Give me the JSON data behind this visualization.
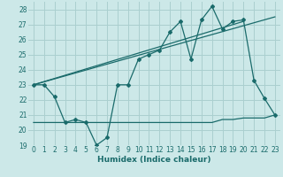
{
  "xlabel": "Humidex (Indice chaleur)",
  "background_color": "#cce8e8",
  "grid_color": "#aacfcf",
  "line_color": "#1a6b6b",
  "xlim": [
    -0.5,
    23.5
  ],
  "ylim": [
    19,
    28.5
  ],
  "yticks": [
    19,
    20,
    21,
    22,
    23,
    24,
    25,
    26,
    27,
    28
  ],
  "xticks": [
    0,
    1,
    2,
    3,
    4,
    5,
    6,
    7,
    8,
    9,
    10,
    11,
    12,
    13,
    14,
    15,
    16,
    17,
    18,
    19,
    20,
    21,
    22,
    23
  ],
  "series1_x": [
    0,
    1,
    2,
    3,
    4,
    5,
    6,
    7,
    8,
    9,
    10,
    11,
    12,
    13,
    14,
    15,
    16,
    17,
    18,
    19,
    20,
    21,
    22,
    23
  ],
  "series1_y": [
    23.0,
    23.0,
    22.2,
    20.5,
    20.7,
    20.5,
    19.0,
    19.5,
    23.0,
    23.0,
    24.7,
    25.0,
    25.3,
    26.5,
    27.2,
    24.7,
    27.3,
    28.2,
    26.7,
    27.2,
    27.3,
    23.3,
    22.1,
    21.0
  ],
  "series2_x": [
    0,
    3,
    4,
    5,
    6,
    7,
    8,
    9,
    10,
    11,
    12,
    13,
    14,
    15,
    16,
    17,
    18,
    19,
    20,
    21,
    22,
    23
  ],
  "series2_y": [
    20.5,
    20.5,
    20.5,
    20.5,
    20.5,
    20.5,
    20.5,
    20.5,
    20.5,
    20.5,
    20.5,
    20.5,
    20.5,
    20.5,
    20.5,
    20.5,
    20.7,
    20.7,
    20.8,
    20.8,
    20.8,
    21.0
  ],
  "trend1_x": [
    0,
    20
  ],
  "trend1_y": [
    23.0,
    27.2
  ],
  "trend2_x": [
    0,
    23
  ],
  "trend2_y": [
    23.0,
    27.5
  ]
}
